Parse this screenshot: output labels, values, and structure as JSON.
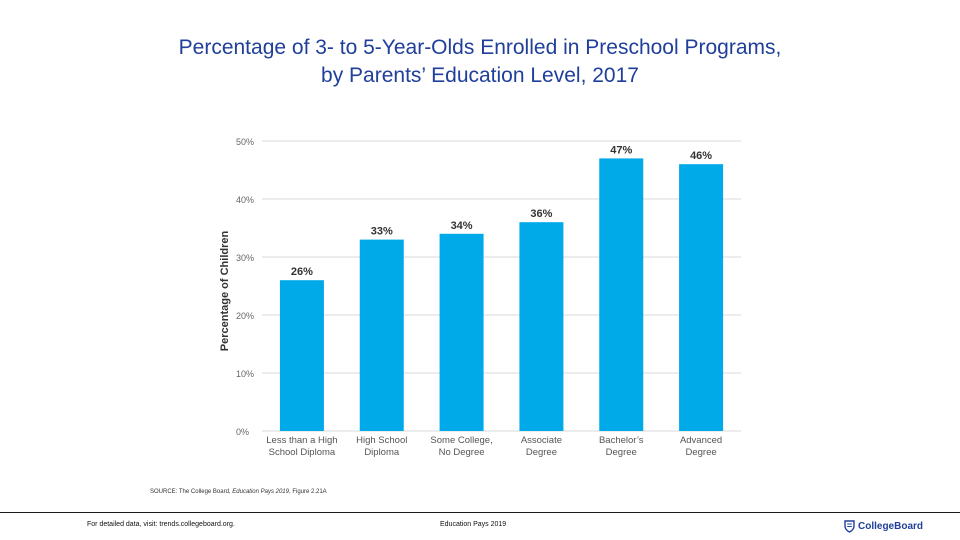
{
  "header": {
    "title_line1": "Percentage of 3- to 5-Year-Olds Enrolled in Preschool Programs,",
    "title_line2": "by Parents’ Education Level, 2017"
  },
  "chart_data": {
    "type": "bar",
    "categories": [
      [
        "Less than a High",
        "School Diploma"
      ],
      [
        "High School",
        "Diploma"
      ],
      [
        "Some College,",
        "No Degree"
      ],
      [
        "Associate",
        "Degree"
      ],
      [
        "Bachelor’s",
        "Degree"
      ],
      [
        "Advanced",
        "Degree"
      ]
    ],
    "values": [
      26,
      33,
      34,
      36,
      47,
      46
    ],
    "value_labels": [
      "26%",
      "33%",
      "34%",
      "36%",
      "47%",
      "46%"
    ],
    "ylabel": "Percentage of Children",
    "xlabel": "",
    "ylim": [
      0,
      50
    ],
    "yticks": [
      0,
      10,
      20,
      30,
      40,
      50
    ],
    "ytick_labels": [
      "0%",
      "10%",
      "20%",
      "30%",
      "40%",
      "50%"
    ],
    "grid": true,
    "bar_color": "#00a9e8"
  },
  "source": {
    "prefix": "SOURCE: The College Board, ",
    "publication": "Education Pays 2019",
    "suffix": ", Figure 2.21A"
  },
  "footer": {
    "left": "For detailed data, visit: trends.collegeboard.org.",
    "center": "Education Pays 2019",
    "brand": "CollegeBoard",
    "brand_color": "#1f3f9a"
  }
}
